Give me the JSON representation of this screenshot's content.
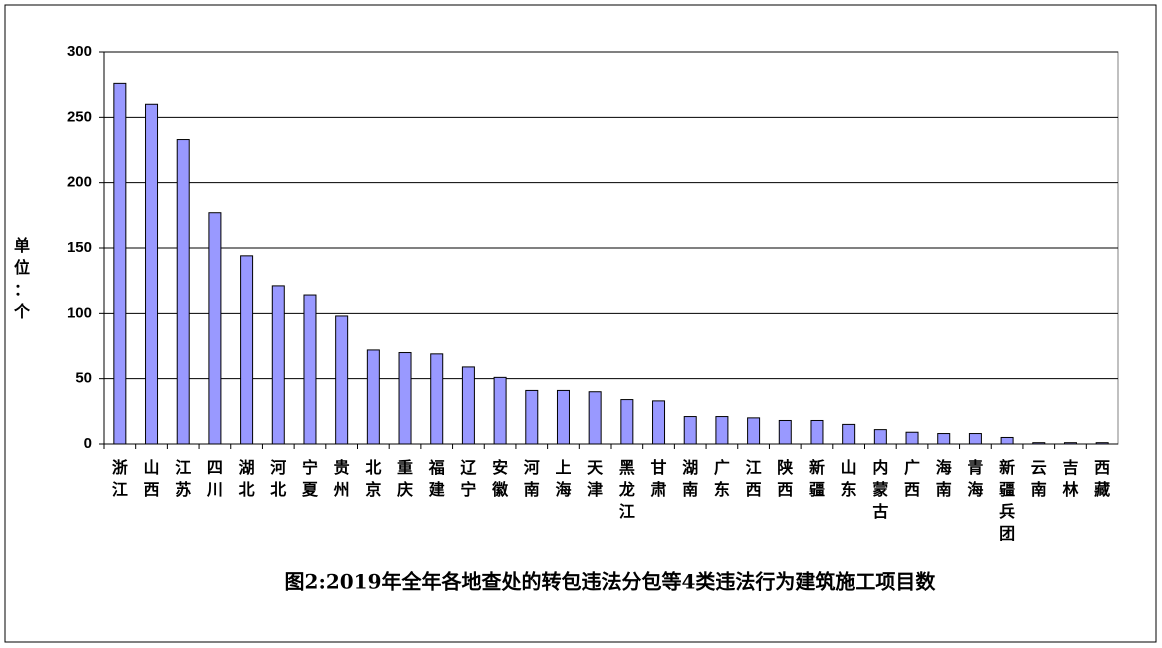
{
  "chart_data": {
    "type": "bar",
    "title": "图2:2019年全年各地查处的转包违法分包等4类违法行为建筑施工项目数",
    "y_label": "单位：个",
    "categories": [
      "浙江",
      "山西",
      "江苏",
      "四川",
      "湖北",
      "河北",
      "宁夏",
      "贵州",
      "北京",
      "重庆",
      "福建",
      "辽宁",
      "安徽",
      "河南",
      "上海",
      "天津",
      "黑龙江",
      "甘肃",
      "湖南",
      "广东",
      "江西",
      "陕西",
      "新疆",
      "山东",
      "内蒙古",
      "广西",
      "海南",
      "青海",
      "新疆兵团",
      "云南",
      "吉林",
      "西藏"
    ],
    "values": [
      276,
      260,
      233,
      177,
      144,
      121,
      114,
      98,
      72,
      70,
      69,
      59,
      51,
      41,
      41,
      40,
      34,
      33,
      21,
      21,
      20,
      18,
      18,
      15,
      11,
      9,
      8,
      8,
      5,
      1,
      1,
      1
    ],
    "color": "#9999ff",
    "ylim": [
      0,
      300
    ],
    "yticks": [
      0,
      50,
      100,
      150,
      200,
      250,
      300
    ],
    "grid": true
  }
}
